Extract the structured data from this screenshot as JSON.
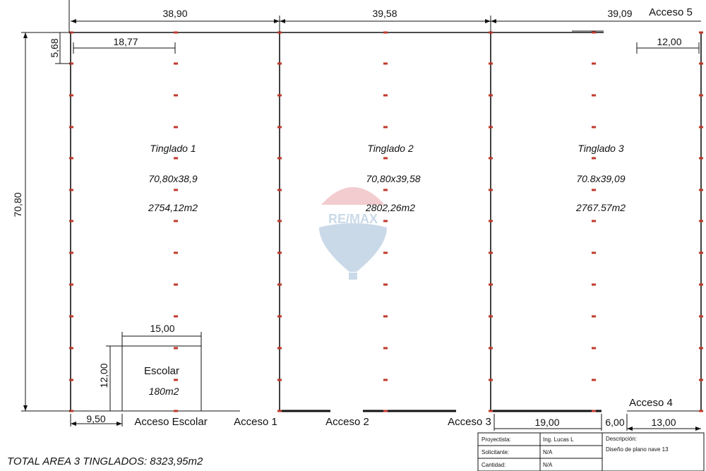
{
  "dimensions": {
    "top_width_1": "38,90",
    "top_width_2": "39,58",
    "top_width_3": "39,09",
    "inner_width_1": "18,77",
    "offset_top": "5,68",
    "height_total": "70,80",
    "right_inner": "12,00",
    "escolar_width": "15,00",
    "escolar_height": "12,00",
    "bottom_left": "9,50",
    "bottom_mid": "19,00",
    "bottom_gap": "6,00",
    "bottom_right": "13,00"
  },
  "sheds": [
    {
      "name": "Tinglado 1",
      "dims": "70,80x38,9",
      "area": "2754,12m2"
    },
    {
      "name": "Tinglado 2",
      "dims": "70,80x39,58",
      "area": "2802,26m2"
    },
    {
      "name": "Tinglado 3",
      "dims": "70.8x39,09",
      "area": "2767.57m2"
    }
  ],
  "escolar": {
    "name": "Escolar",
    "area": "180m2"
  },
  "accesses": {
    "escolar": "Acceso Escolar",
    "a1": "Acceso 1",
    "a2": "Acceso 2",
    "a3": "Acceso 3",
    "a4": "Acceso 4",
    "a5": "Acceso 5"
  },
  "total_area": "TOTAL AREA 3 TINGLADOS: 8323,95m2",
  "title_block": {
    "proyectista_label": "Proyectista:",
    "proyectista_value": "Ing. Lucas L",
    "solicitante_label": "Solicitante:",
    "solicitante_value": "N/A",
    "cantidad_label": "Cantidad:",
    "cantidad_value": "N/A",
    "descripcion_label": "Descripción:",
    "descripcion_value": "Diseño de plano nave 13"
  },
  "watermark": {
    "text": "RE/MAX",
    "colors": {
      "red": "#e8a3a8",
      "blue": "#9dbbd6"
    }
  },
  "colors": {
    "column_marker": "#c0392b",
    "line": "#111111"
  }
}
